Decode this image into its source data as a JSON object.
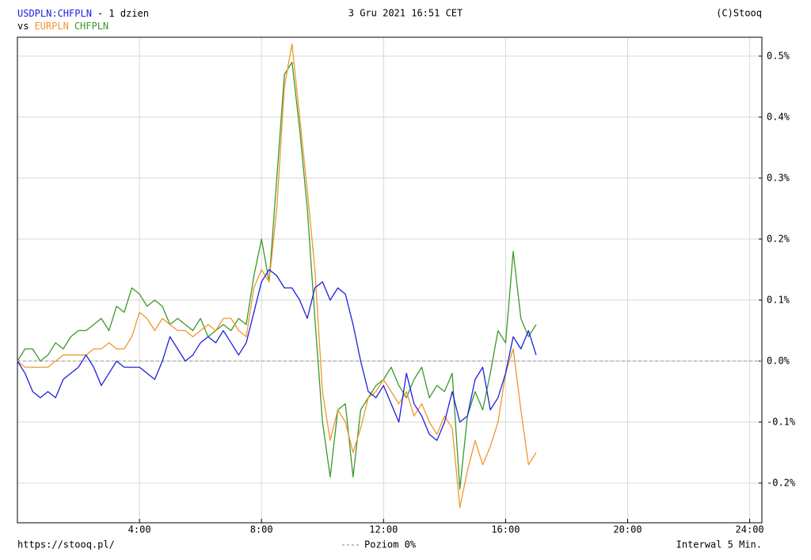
{
  "chart_data": {
    "type": "line",
    "title": "3 Gru 2021 16:51 CET",
    "subtitle": "- 1 dzien",
    "credit": "(C)Stooq",
    "legend_prefix": "vs",
    "source": "https://stooq.pl/",
    "interval_note": "Interwal 5 Min.",
    "reference_line": {
      "value": 0,
      "label": "Poziom 0%"
    },
    "grid": true,
    "x": [
      0,
      0.25,
      0.5,
      0.75,
      1,
      1.25,
      1.5,
      1.75,
      2,
      2.25,
      2.5,
      2.75,
      3,
      3.25,
      3.5,
      3.75,
      4,
      4.25,
      4.5,
      4.75,
      5,
      5.25,
      5.5,
      5.75,
      6,
      6.25,
      6.5,
      6.75,
      7,
      7.25,
      7.5,
      7.75,
      8,
      8.25,
      8.5,
      8.75,
      9,
      9.25,
      9.5,
      9.75,
      10,
      10.25,
      10.5,
      10.75,
      11,
      11.25,
      11.5,
      11.75,
      12,
      12.25,
      12.5,
      12.75,
      13,
      13.25,
      13.5,
      13.75,
      14,
      14.25,
      14.5,
      14.75,
      15,
      15.25,
      15.5,
      15.75,
      16,
      16.25,
      16.5,
      16.75,
      17
    ],
    "xlim": [
      0,
      24.4
    ],
    "xticks": [
      {
        "value": 4,
        "label": "4:00"
      },
      {
        "value": 8,
        "label": "8:00"
      },
      {
        "value": 12,
        "label": "12:00"
      },
      {
        "value": 16,
        "label": "16:00"
      },
      {
        "value": 20,
        "label": "20:00"
      },
      {
        "value": 24,
        "label": "24:00"
      }
    ],
    "ylim": [
      -0.265,
      0.531
    ],
    "yticks": [
      {
        "value": -0.2,
        "label": "-0.2%"
      },
      {
        "value": -0.1,
        "label": "-0.1%"
      },
      {
        "value": 0,
        "label": "0.0%"
      },
      {
        "value": 0.1,
        "label": "0.1%"
      },
      {
        "value": 0.2,
        "label": "0.2%"
      },
      {
        "value": 0.3,
        "label": "0.3%"
      },
      {
        "value": 0.4,
        "label": "0.4%"
      },
      {
        "value": 0.5,
        "label": "0.5%"
      }
    ],
    "series": [
      {
        "name": "USDPLN:CHFPLN",
        "color": "#1f1fe0",
        "values": [
          0,
          -0.02,
          -0.05,
          -0.06,
          -0.05,
          -0.06,
          -0.03,
          -0.02,
          -0.01,
          0.01,
          -0.01,
          -0.04,
          -0.02,
          0,
          -0.01,
          -0.01,
          -0.01,
          -0.02,
          -0.03,
          0,
          0.04,
          0.02,
          0,
          0.01,
          0.03,
          0.04,
          0.03,
          0.05,
          0.03,
          0.01,
          0.03,
          0.08,
          0.13,
          0.15,
          0.14,
          0.12,
          0.12,
          0.1,
          0.07,
          0.12,
          0.13,
          0.1,
          0.12,
          0.11,
          0.06,
          0,
          -0.05,
          -0.06,
          -0.04,
          -0.07,
          -0.1,
          -0.02,
          -0.07,
          -0.09,
          -0.12,
          -0.13,
          -0.1,
          -0.05,
          -0.1,
          -0.09,
          -0.03,
          -0.01,
          -0.08,
          -0.06,
          -0.02,
          0.04,
          0.02,
          0.05,
          0.01
        ]
      },
      {
        "name": "EURPLN",
        "color": "#f0962e",
        "values": [
          0,
          -0.01,
          -0.01,
          -0.01,
          -0.01,
          0,
          0.01,
          0.01,
          0.01,
          0.01,
          0.02,
          0.02,
          0.03,
          0.02,
          0.02,
          0.04,
          0.08,
          0.07,
          0.05,
          0.07,
          0.06,
          0.05,
          0.05,
          0.04,
          0.05,
          0.06,
          0.05,
          0.07,
          0.07,
          0.05,
          0.04,
          0.12,
          0.15,
          0.13,
          0.25,
          0.45,
          0.52,
          0.4,
          0.28,
          0.15,
          -0.05,
          -0.13,
          -0.08,
          -0.1,
          -0.15,
          -0.11,
          -0.06,
          -0.05,
          -0.03,
          -0.05,
          -0.07,
          -0.05,
          -0.09,
          -0.07,
          -0.1,
          -0.12,
          -0.09,
          -0.11,
          -0.24,
          -0.18,
          -0.13,
          -0.17,
          -0.14,
          -0.1,
          -0.02,
          0.02,
          -0.08,
          -0.17,
          -0.15
        ]
      },
      {
        "name": "CHFPLN",
        "color": "#3a9a2a",
        "values": [
          0,
          0.02,
          0.02,
          0,
          0.01,
          0.03,
          0.02,
          0.04,
          0.05,
          0.05,
          0.06,
          0.07,
          0.05,
          0.09,
          0.08,
          0.12,
          0.11,
          0.09,
          0.1,
          0.09,
          0.06,
          0.07,
          0.06,
          0.05,
          0.07,
          0.04,
          0.05,
          0.06,
          0.05,
          0.07,
          0.06,
          0.14,
          0.2,
          0.13,
          0.3,
          0.47,
          0.49,
          0.38,
          0.25,
          0.07,
          -0.1,
          -0.19,
          -0.08,
          -0.07,
          -0.19,
          -0.08,
          -0.06,
          -0.04,
          -0.03,
          -0.01,
          -0.04,
          -0.06,
          -0.03,
          -0.01,
          -0.06,
          -0.04,
          -0.05,
          -0.02,
          -0.21,
          -0.09,
          -0.05,
          -0.08,
          -0.02,
          0.05,
          0.03,
          0.18,
          0.07,
          0.04,
          0.06
        ]
      }
    ]
  }
}
